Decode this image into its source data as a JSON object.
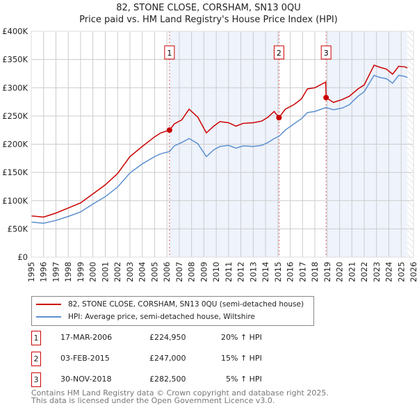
{
  "title": "82, STONE CLOSE, CORSHAM, SN13 0QU",
  "subtitle": "Price paid vs. HM Land Registry's House Price Index (HPI)",
  "chart_data": {
    "type": "line",
    "xlim": [
      1995,
      2026
    ],
    "ylim": [
      0,
      400000
    ],
    "x_ticks": [
      "1995",
      "1996",
      "1997",
      "1998",
      "1999",
      "2000",
      "2001",
      "2002",
      "2003",
      "2004",
      "2005",
      "2006",
      "2007",
      "2008",
      "2009",
      "2010",
      "2011",
      "2012",
      "2013",
      "2014",
      "2015",
      "2016",
      "2017",
      "2018",
      "2019",
      "2020",
      "2021",
      "2022",
      "2023",
      "2024",
      "2025",
      "2026"
    ],
    "y_ticks": [
      {
        "v": 0,
        "label": "£0"
      },
      {
        "v": 50000,
        "label": "£50K"
      },
      {
        "v": 100000,
        "label": "£100K"
      },
      {
        "v": 150000,
        "label": "£150K"
      },
      {
        "v": 200000,
        "label": "£200K"
      },
      {
        "v": 250000,
        "label": "£250K"
      },
      {
        "v": 300000,
        "label": "£300K"
      },
      {
        "v": 350000,
        "label": "£350K"
      },
      {
        "v": 400000,
        "label": "£400K"
      }
    ],
    "grid": true,
    "series": [
      {
        "name": "82, STONE CLOSE, CORSHAM, SN13 0QU (semi-detached house)",
        "color": "#cc0000",
        "points": [
          [
            1995,
            73000
          ],
          [
            1996,
            71000
          ],
          [
            1997,
            78000
          ],
          [
            1998,
            87000
          ],
          [
            1999,
            96000
          ],
          [
            2000,
            112000
          ],
          [
            2001,
            128000
          ],
          [
            2002,
            148000
          ],
          [
            2003,
            178000
          ],
          [
            2004,
            196000
          ],
          [
            2005,
            213000
          ],
          [
            2005.5,
            220000
          ],
          [
            2006.21,
            224950
          ],
          [
            2006.6,
            236000
          ],
          [
            2007.2,
            243000
          ],
          [
            2007.8,
            262000
          ],
          [
            2008.5,
            248000
          ],
          [
            2009.2,
            220000
          ],
          [
            2009.8,
            232000
          ],
          [
            2010.3,
            240000
          ],
          [
            2011,
            238000
          ],
          [
            2011.6,
            232000
          ],
          [
            2012.2,
            237000
          ],
          [
            2013,
            238000
          ],
          [
            2013.7,
            241000
          ],
          [
            2014.2,
            248000
          ],
          [
            2014.7,
            258000
          ],
          [
            2015.09,
            247000
          ],
          [
            2015.6,
            262000
          ],
          [
            2016.3,
            270000
          ],
          [
            2016.9,
            280000
          ],
          [
            2017.4,
            298000
          ],
          [
            2018,
            300000
          ],
          [
            2018.88,
            310000
          ],
          [
            2018.91,
            282500
          ],
          [
            2019.5,
            274000
          ],
          [
            2020.2,
            279000
          ],
          [
            2020.8,
            285000
          ],
          [
            2021.5,
            298000
          ],
          [
            2022,
            305000
          ],
          [
            2022.8,
            340000
          ],
          [
            2023.3,
            336000
          ],
          [
            2023.8,
            333000
          ],
          [
            2024.3,
            324000
          ],
          [
            2024.8,
            338000
          ],
          [
            2025.3,
            337000
          ],
          [
            2025.5,
            335000
          ]
        ]
      },
      {
        "name": "HPI: Average price, semi-detached house, Wiltshire",
        "color": "#5b8fd1",
        "points": [
          [
            1995,
            62000
          ],
          [
            1996,
            60000
          ],
          [
            1997,
            65000
          ],
          [
            1998,
            72000
          ],
          [
            1999,
            80000
          ],
          [
            2000,
            94000
          ],
          [
            2001,
            107000
          ],
          [
            2002,
            124000
          ],
          [
            2003,
            149000
          ],
          [
            2004,
            165000
          ],
          [
            2005,
            178000
          ],
          [
            2005.5,
            183000
          ],
          [
            2006.21,
            187000
          ],
          [
            2006.6,
            197000
          ],
          [
            2007.2,
            203000
          ],
          [
            2007.8,
            210000
          ],
          [
            2008.5,
            201000
          ],
          [
            2009.2,
            178000
          ],
          [
            2009.8,
            190000
          ],
          [
            2010.3,
            196000
          ],
          [
            2011,
            198000
          ],
          [
            2011.6,
            193000
          ],
          [
            2012.2,
            197000
          ],
          [
            2013,
            196000
          ],
          [
            2013.7,
            198000
          ],
          [
            2014.2,
            203000
          ],
          [
            2014.7,
            210000
          ],
          [
            2015.09,
            214000
          ],
          [
            2015.6,
            225000
          ],
          [
            2016.3,
            236000
          ],
          [
            2016.9,
            245000
          ],
          [
            2017.4,
            256000
          ],
          [
            2018,
            258000
          ],
          [
            2018.9,
            265000
          ],
          [
            2019.5,
            261000
          ],
          [
            2020.2,
            264000
          ],
          [
            2020.8,
            270000
          ],
          [
            2021.5,
            285000
          ],
          [
            2022,
            293000
          ],
          [
            2022.8,
            322000
          ],
          [
            2023.3,
            318000
          ],
          [
            2023.8,
            316000
          ],
          [
            2024.3,
            308000
          ],
          [
            2024.8,
            322000
          ],
          [
            2025.3,
            320000
          ],
          [
            2025.5,
            318000
          ]
        ]
      }
    ],
    "sales": [
      {
        "n": "1",
        "x": 2006.21,
        "price": 224950,
        "date": "17-MAR-2006",
        "price_label": "£224,950",
        "hpi": "20% ↑ HPI"
      },
      {
        "n": "2",
        "x": 2015.09,
        "price": 247000,
        "date": "03-FEB-2015",
        "price_label": "£247,000",
        "hpi": "15% ↑ HPI"
      },
      {
        "n": "3",
        "x": 2018.91,
        "price": 282500,
        "date": "30-NOV-2018",
        "price_label": "£282,500",
        "hpi": "5% ↑ HPI"
      }
    ],
    "forecast_start": 2025.5
  },
  "footer": {
    "line1": "Contains HM Land Registry data © Crown copyright and database right 2025.",
    "line2": "This data is licensed under the Open Government Licence v3.0."
  }
}
